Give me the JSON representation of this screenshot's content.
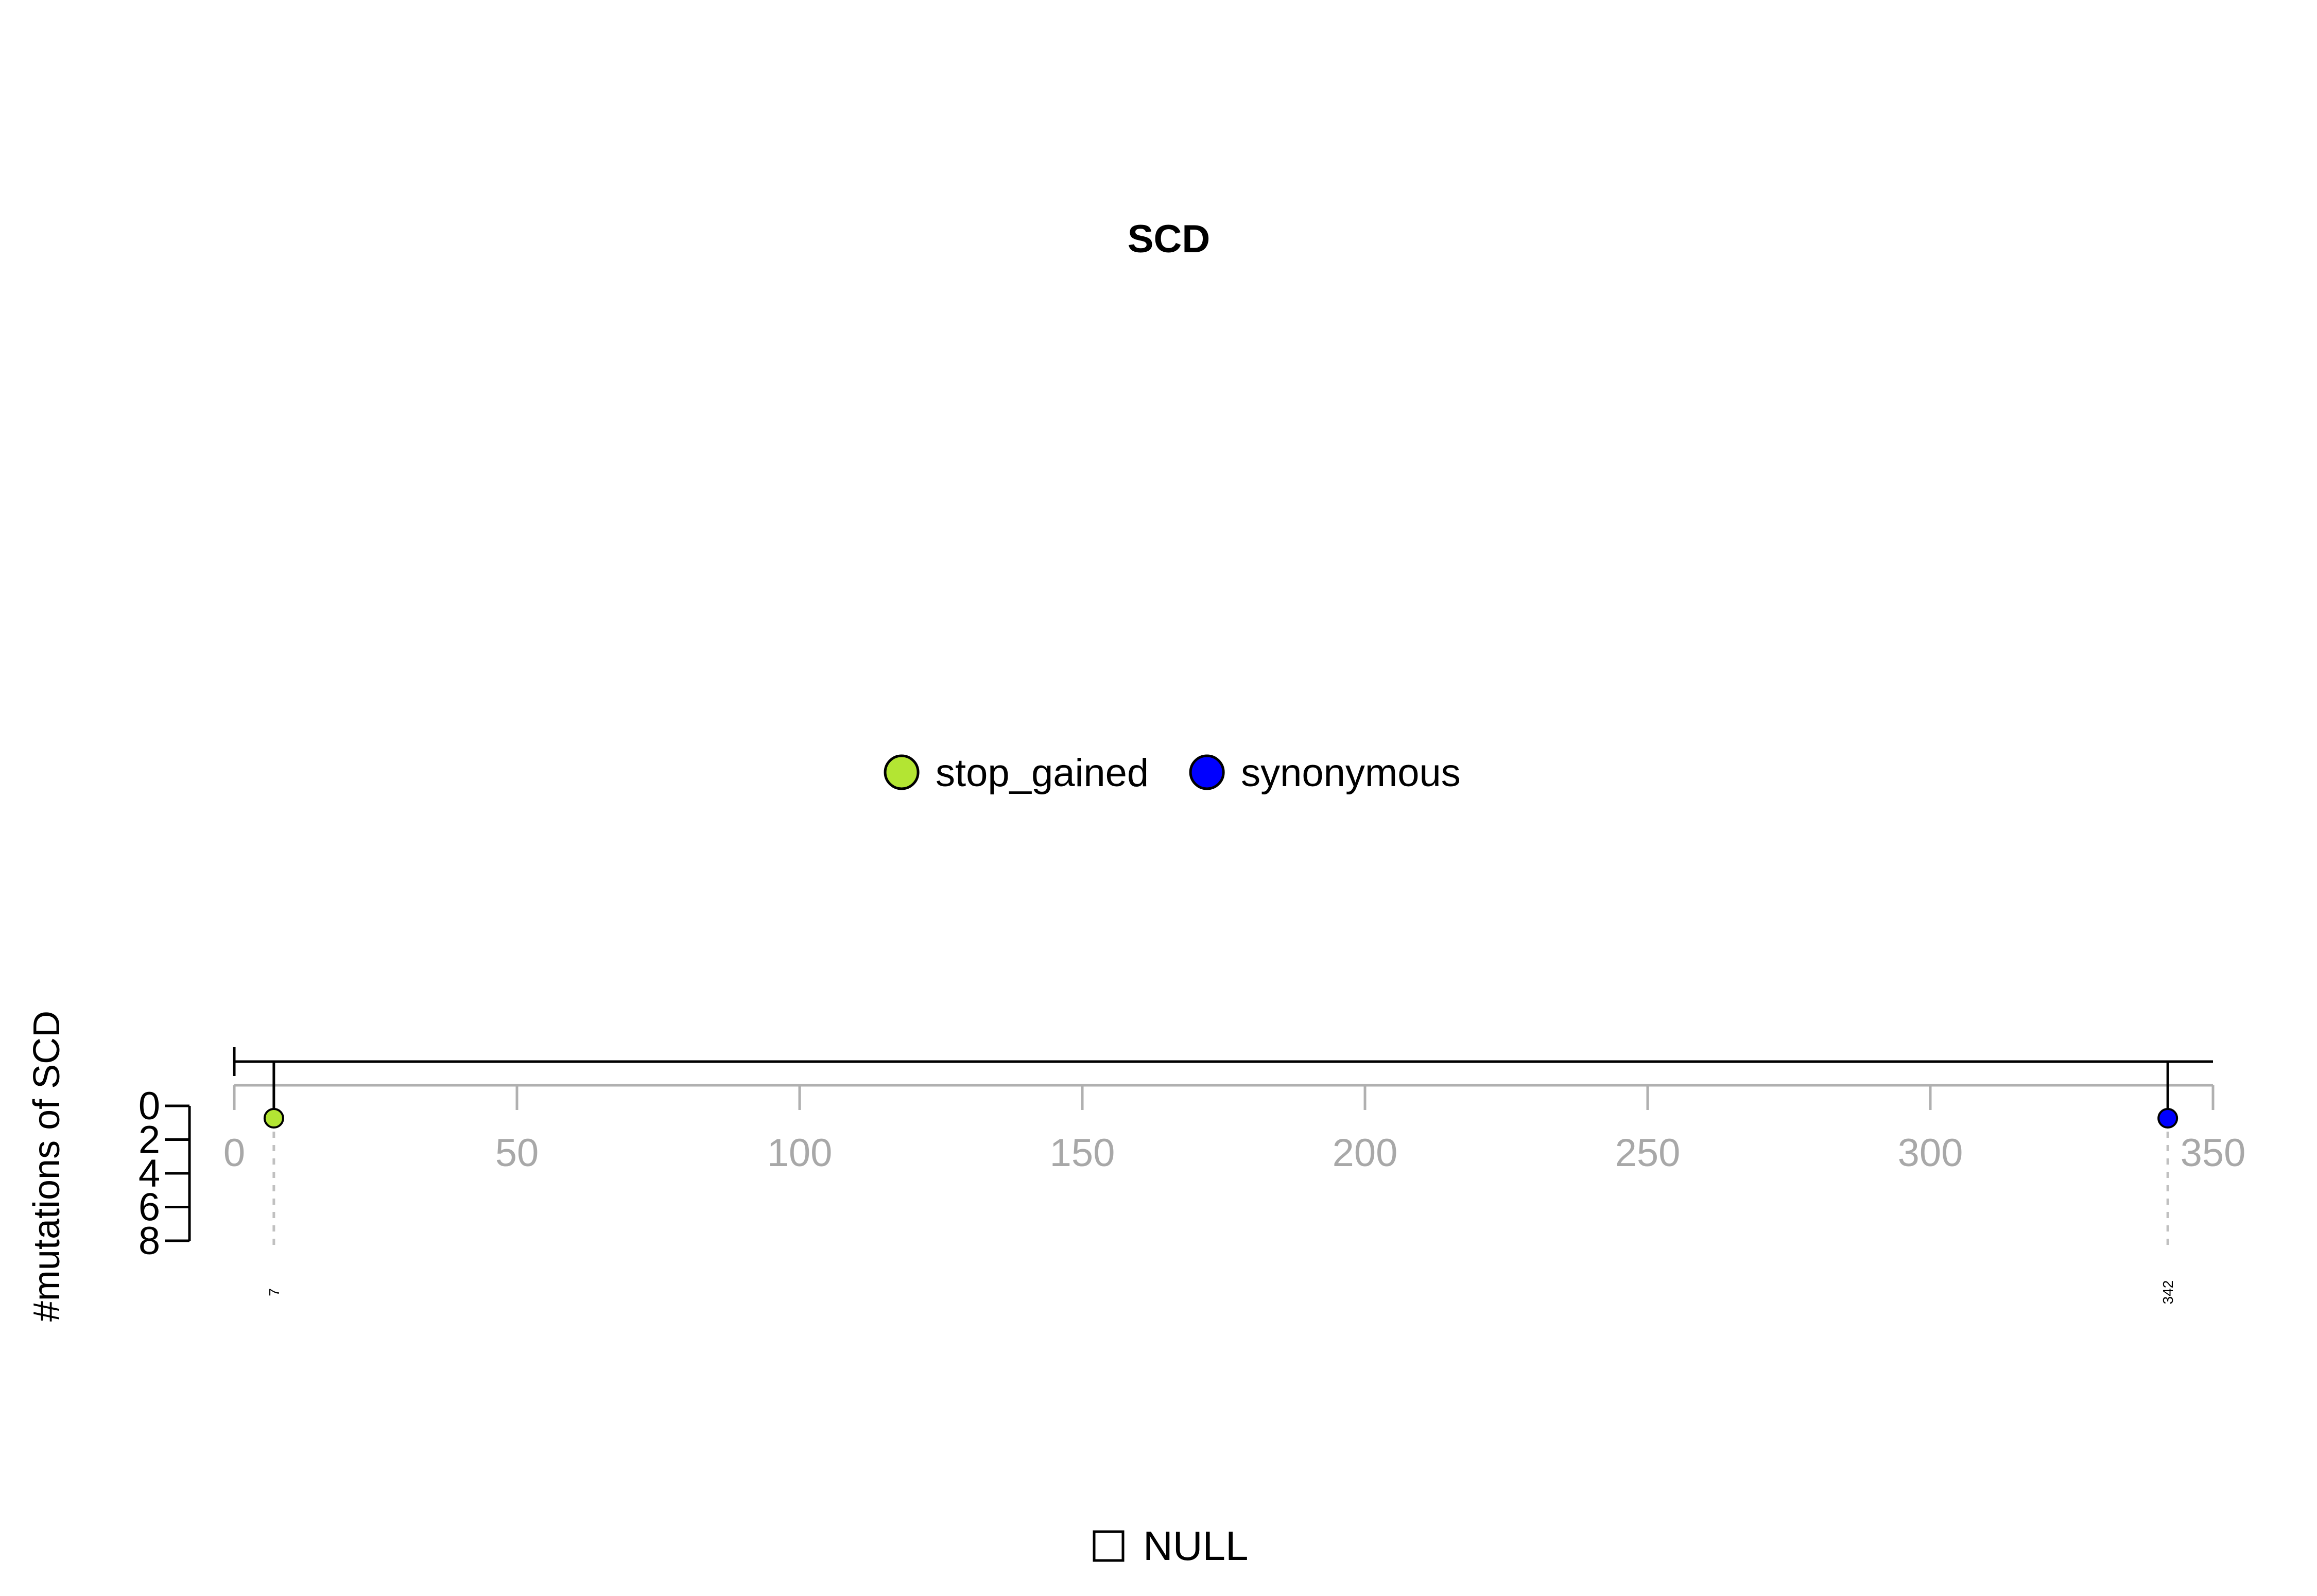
{
  "chart_data": {
    "type": "lollipop",
    "title": "SCD",
    "ylabel": "#mutations of SCD",
    "xlim": [
      0,
      350
    ],
    "x_ticks": [
      0,
      50,
      100,
      150,
      200,
      250,
      300,
      350
    ],
    "y_ticks": [
      0,
      2,
      4,
      6,
      8
    ],
    "protein_length": 350,
    "legend": [
      {
        "label": "stop_gained",
        "color": "#b3e533"
      },
      {
        "label": "synonymous",
        "color": "#0000ff"
      }
    ],
    "mutations": [
      {
        "position": 7,
        "count": 1,
        "type": "stop_gained",
        "color": "#b3e533",
        "label": "7"
      },
      {
        "position": 342,
        "count": 1,
        "type": "synonymous",
        "color": "#0000ff",
        "label": "342"
      }
    ],
    "domain_legend": [
      {
        "label": "NULL",
        "color": "#ffffff"
      }
    ]
  }
}
